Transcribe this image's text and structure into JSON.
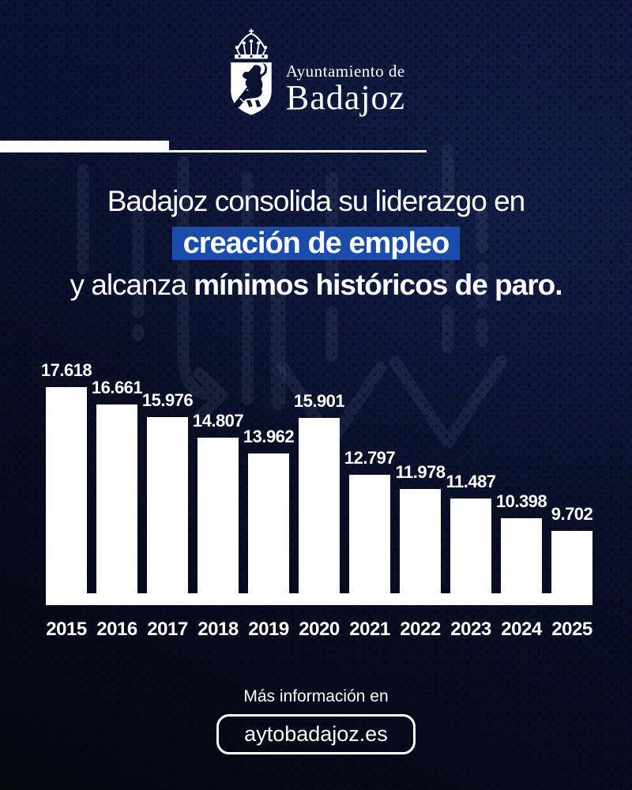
{
  "logo": {
    "org_line1": "Ayuntamiento de",
    "org_line2": "Badajoz"
  },
  "headline": {
    "line1": "Badajoz consolida su liderazgo en",
    "highlight": "creación de empleo",
    "highlight_bg": "#1a4dab",
    "line3_regular": "y alcanza ",
    "line3_bold": "mínimos históricos de paro."
  },
  "chart_data": {
    "type": "bar",
    "categories": [
      "2015",
      "2016",
      "2017",
      "2018",
      "2019",
      "2020",
      "2021",
      "2022",
      "2023",
      "2024",
      "2025"
    ],
    "values": [
      17618,
      16661,
      15976,
      14807,
      13962,
      15901,
      12797,
      11978,
      11487,
      10398,
      9702
    ],
    "value_labels": [
      "17.618",
      "16.661",
      "15.976",
      "14.807",
      "13.962",
      "15.901",
      "12.797",
      "11.978",
      "11.487",
      "10.398",
      "9.702"
    ],
    "bar_color": "#ffffff",
    "label_color": "#ffffff",
    "ylim": [
      5600,
      18000
    ],
    "grid": false,
    "legend": false
  },
  "footer": {
    "info_text": "Más información en",
    "link_label": "aytobadajoz.es"
  },
  "colors": {
    "background_navy": "#0b1230",
    "background_dark": "#04060e",
    "accent_white": "#ffffff",
    "highlight_blue": "#1a4dab",
    "watermark_arrow": "#5c6888"
  }
}
